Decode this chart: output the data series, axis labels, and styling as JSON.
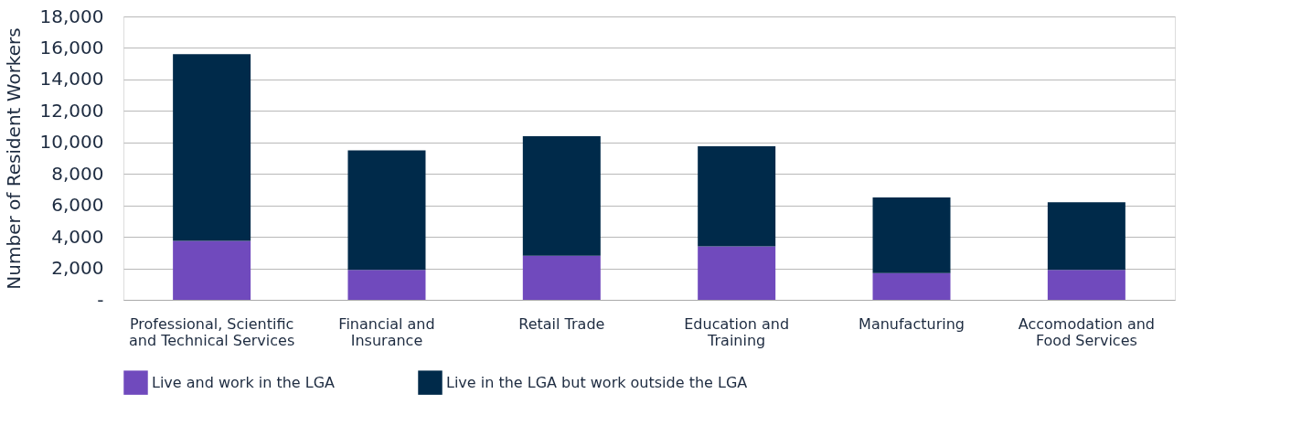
{
  "chart_data": {
    "type": "bar",
    "stacked": true,
    "ylabel": "Number of Resident Workers",
    "categories": [
      "Professional, Scientific and Technical Services",
      "Financial and Insurance",
      "Retail Trade",
      "Education and Training",
      "Manufacturing",
      "Accomodation and Food Services"
    ],
    "series": [
      {
        "name": "Live and work in the LGA",
        "color": "#704abd",
        "values": [
          3750,
          1900,
          2800,
          3400,
          1700,
          1900
        ]
      },
      {
        "name": "Live in the LGA but work outside the LGA",
        "color": "#002a4a",
        "values": [
          11850,
          7600,
          7600,
          6350,
          4800,
          4300
        ]
      }
    ],
    "ylim": [
      0,
      18000
    ],
    "yticks": [
      {
        "value": 0,
        "label": "-"
      },
      {
        "value": 2000,
        "label": "2,000"
      },
      {
        "value": 4000,
        "label": "4,000"
      },
      {
        "value": 6000,
        "label": "6,000"
      },
      {
        "value": 8000,
        "label": "8,000"
      },
      {
        "value": 10000,
        "label": "10,000"
      },
      {
        "value": 12000,
        "label": "12,000"
      },
      {
        "value": 14000,
        "label": "14,000"
      },
      {
        "value": 16000,
        "label": "16,000"
      },
      {
        "value": 18000,
        "label": "18,000"
      }
    ],
    "grid": "y",
    "legend": "bottom left"
  }
}
